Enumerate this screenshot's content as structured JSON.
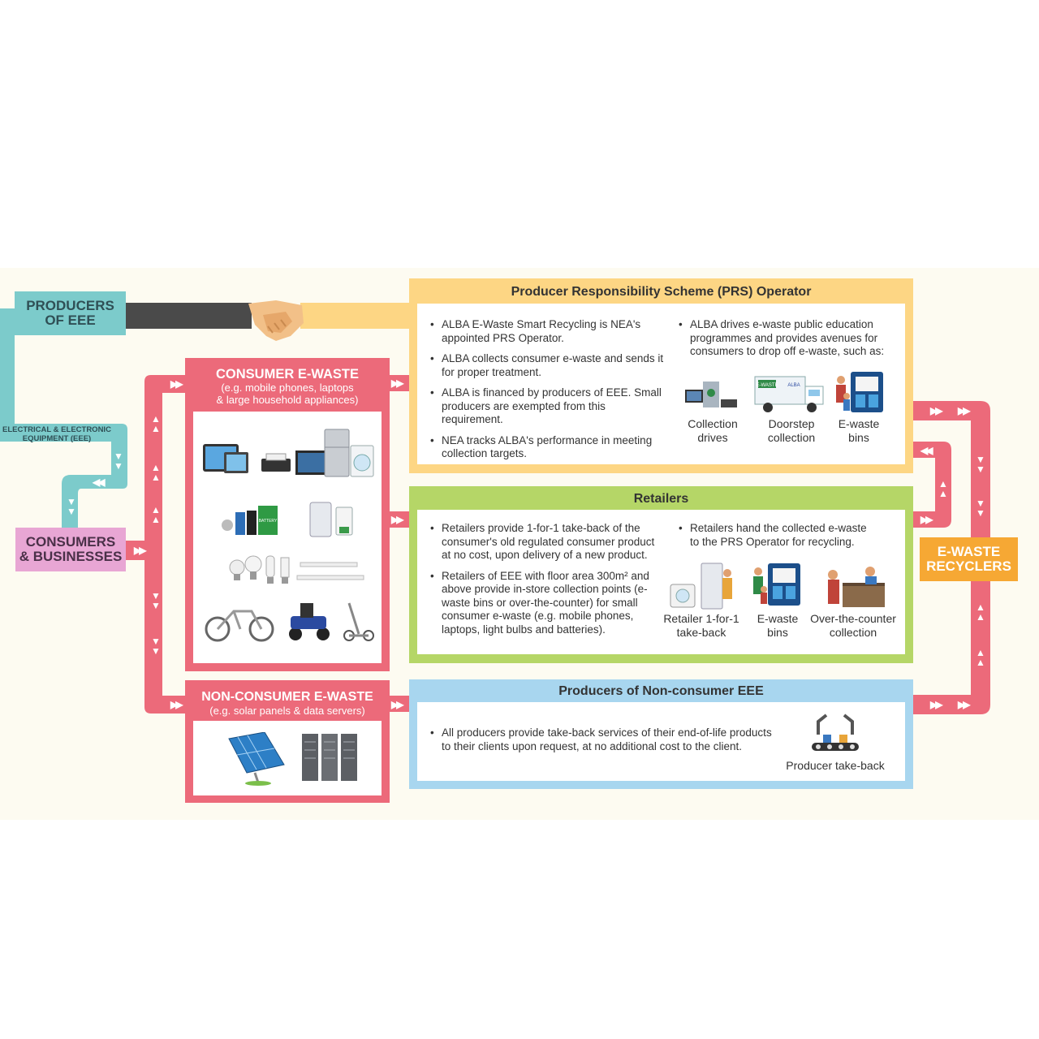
{
  "producers_box": {
    "label_line1": "PRODUCERS",
    "label_line2": "OF EEE"
  },
  "eee_label": {
    "line1": "ELECTRICAL & ELECTRONIC",
    "line2": "EQUIPMENT (EEE)"
  },
  "consumers_box": {
    "line1": "CONSUMERS",
    "line2": "& BUSINESSES"
  },
  "consumer_ewaste": {
    "title": "CONSUMER E-WASTE",
    "sub1": "(e.g. mobile phones, laptops",
    "sub2": "& large household appliances)"
  },
  "nonconsumer_ewaste": {
    "title": "NON-CONSUMER E-WASTE",
    "sub": "(e.g. solar panels & data servers)"
  },
  "prs": {
    "title": "Producer Responsibility Scheme (PRS) Operator",
    "left_bullets": [
      "ALBA E-Waste Smart Recycling is NEA's appointed PRS Operator.",
      "ALBA collects consumer e-waste and sends it for proper treatment.",
      "ALBA is financed by producers of EEE. Small producers are exempted from this requirement.",
      "NEA tracks ALBA's performance in meeting collection targets."
    ],
    "right_bullet": "ALBA drives e-waste public education programmes and provides avenues for consumers to drop off e-waste, such as:",
    "captions": [
      {
        "l1": "Collection",
        "l2": "drives"
      },
      {
        "l1": "Doorstep",
        "l2": "collection"
      },
      {
        "l1": "E-waste",
        "l2": "bins"
      }
    ],
    "truck_text": "ALBA",
    "truck_brand": "E-WASTE"
  },
  "retailers": {
    "title": "Retailers",
    "left_bullets": [
      "Retailers provide 1-for-1 take-back of the consumer's old regulated consumer product at no cost, upon delivery of a new product.",
      "Retailers of EEE with floor area 300m² and above provide in-store collection points (e-waste bins or over-the-counter) for small consumer e-waste (e.g. mobile phones, laptops, light bulbs and batteries)."
    ],
    "right_bullet": "Retailers hand the collected e-waste to the PRS Operator for recycling.",
    "captions": [
      {
        "l1": "Retailer 1-for-1",
        "l2": "take-back"
      },
      {
        "l1": "E-waste",
        "l2": "bins"
      },
      {
        "l1": "Over-the-counter",
        "l2": "collection"
      }
    ]
  },
  "noncons_producers": {
    "title": "Producers of Non-consumer EEE",
    "bullet": "All producers provide take-back services of their end-of-life products to their clients upon request, at no additional cost to the client.",
    "caption": "Producer take-back"
  },
  "recyclers": {
    "line1": "E-WASTE",
    "line2": "RECYCLERS"
  },
  "battery_text": "BATTERY",
  "colors": {
    "teal": "#7ccbcb",
    "pink": "#ec6a7a",
    "yellow": "#fdd684",
    "green": "#b5d667",
    "blue": "#a8d6ef",
    "orange": "#f6a834",
    "lavender": "#e8a6d4",
    "handshake_dark": "#4a4a4a"
  }
}
